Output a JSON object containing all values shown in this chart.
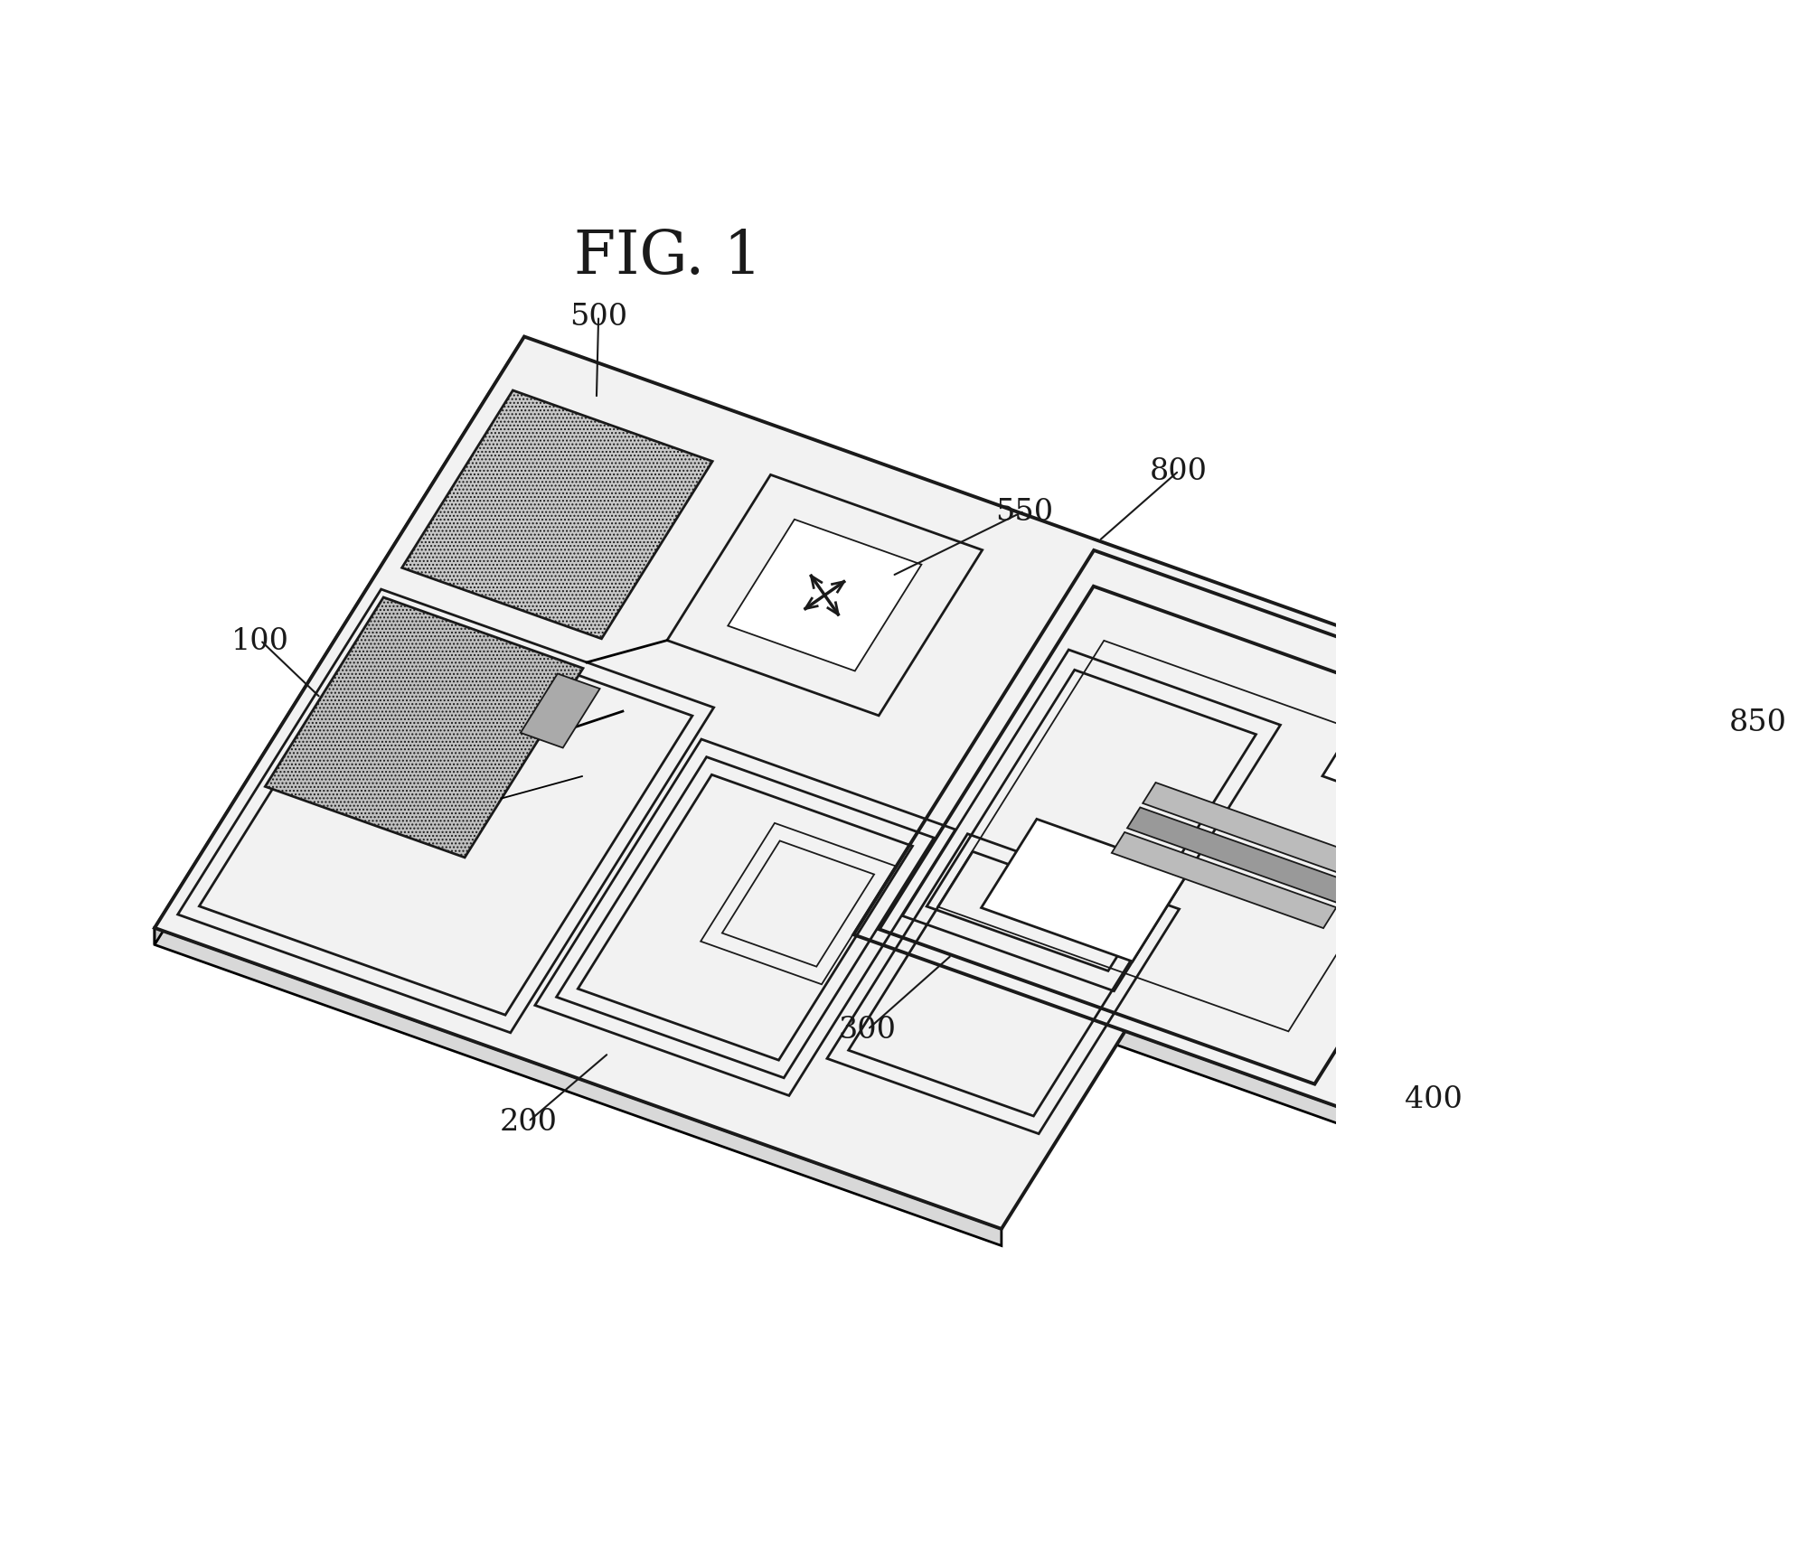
{
  "title": "FIG. 1",
  "title_fontsize": 48,
  "background_color": "#ffffff",
  "line_color": "#1a1a1a",
  "label_100": "100",
  "label_200": "200",
  "label_300": "300",
  "label_400": "400",
  "label_500": "500",
  "label_550": "550",
  "label_800": "800",
  "label_850": "850",
  "label_fontsize": 24,
  "lw_main": 2.0,
  "lw_thick": 2.8,
  "lw_thin": 1.3
}
